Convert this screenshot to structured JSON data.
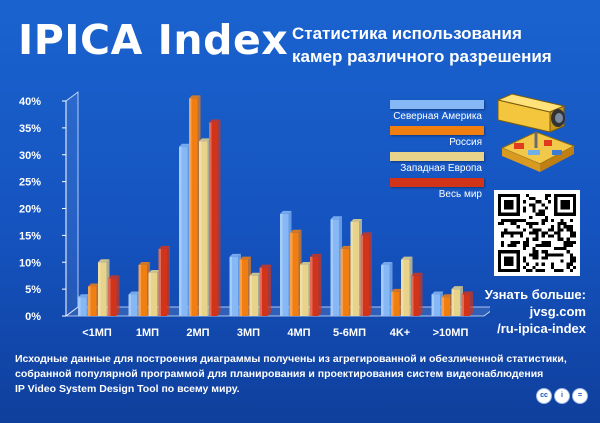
{
  "header": {
    "title": "IPICA Index",
    "subtitle_line1": "Статистика использования",
    "subtitle_line2": "камер различного разрешения"
  },
  "chart_data": {
    "type": "bar",
    "title": "",
    "xlabel": "",
    "ylabel": "",
    "ylim": [
      0,
      40
    ],
    "yticks": [
      "0%",
      "5%",
      "10%",
      "15%",
      "20%",
      "25%",
      "30%",
      "35%",
      "40%"
    ],
    "grid": false,
    "legend_position": "top-right",
    "categories": [
      "<1МП",
      "1МП",
      "2МП",
      "3МП",
      "4МП",
      "5-6МП",
      "4K+",
      ">10МП"
    ],
    "series": [
      {
        "name": "Северная Америка",
        "color": "#86b8f5",
        "values": [
          3.5,
          4,
          31.5,
          11,
          19,
          18,
          9.5,
          4
        ]
      },
      {
        "name": "Россия",
        "color": "#f07e10",
        "values": [
          5.5,
          9.5,
          40.5,
          10.5,
          15.5,
          12.5,
          4.5,
          3.5
        ]
      },
      {
        "name": "Западная Европа",
        "color": "#e8d38a",
        "values": [
          10,
          8,
          32.5,
          7.5,
          9.5,
          17.5,
          10.5,
          5
        ]
      },
      {
        "name": "Весь мир",
        "color": "#d2341a",
        "values": [
          7,
          12.5,
          36,
          9,
          11,
          15,
          7.5,
          4
        ]
      }
    ]
  },
  "sidebar": {
    "more_line1": "Узнать больше:",
    "more_line2": "jvsg.com",
    "more_line3": "/ru-ipica-index",
    "qr_icon": "qr-code-icon",
    "camera_icon": "security-camera-icon"
  },
  "footer": {
    "line1": "Исходные данные для построения диаграммы получены из агрегированной и обезличенной статистики,",
    "line2": "собранной популярной программой для планирования и проектирования систем видеонаблюдения",
    "line3": "IP Video System Design Tool по всему миру.",
    "cc_label": "cc",
    "by_label": "i",
    "eq_label": "="
  }
}
